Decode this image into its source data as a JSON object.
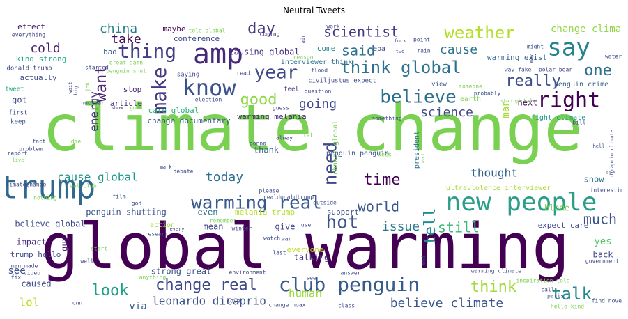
{
  "chart_data": {
    "type": "wordcloud",
    "title": "Neutral Tweets",
    "colormap": "viridis",
    "words": [
      {
        "text": "climate change",
        "weight": 100,
        "color": "#7ad151"
      },
      {
        "text": "global warming",
        "weight": 97,
        "color": "#440154"
      },
      {
        "text": "trump",
        "weight": 52,
        "color": "#31688e"
      },
      {
        "text": "amp",
        "weight": 46,
        "color": "#482878"
      },
      {
        "text": "say",
        "weight": 40,
        "color": "#26828e"
      },
      {
        "text": "new people",
        "weight": 40,
        "color": "#2a9e87"
      },
      {
        "text": "know",
        "weight": 34,
        "color": "#3b528b"
      },
      {
        "text": "thing",
        "weight": 32,
        "color": "#433e85"
      },
      {
        "text": "right",
        "weight": 32,
        "color": "#440154"
      },
      {
        "text": "make",
        "weight": 30,
        "color": "#443a83"
      },
      {
        "text": "warming real",
        "weight": 30,
        "color": "#38598c"
      },
      {
        "text": "club penguin",
        "weight": 30,
        "color": "#365c8d"
      },
      {
        "text": "weather",
        "weight": 30,
        "color": "#b5de2b"
      },
      {
        "text": "year",
        "weight": 28,
        "color": "#3e4a89"
      },
      {
        "text": "believe",
        "weight": 28,
        "color": "#2d708e"
      },
      {
        "text": "need",
        "weight": 28,
        "color": "#3f4788"
      },
      {
        "text": "talk",
        "weight": 28,
        "color": "#23898e"
      },
      {
        "text": "hot",
        "weight": 28,
        "color": "#3b528b"
      },
      {
        "text": "think global",
        "weight": 26,
        "color": "#2c728e"
      },
      {
        "text": "one",
        "weight": 26,
        "color": "#2d708e"
      },
      {
        "text": "really",
        "weight": 26,
        "color": "#3d4e8a"
      },
      {
        "text": "change real",
        "weight": 24,
        "color": "#3e4989"
      },
      {
        "text": "tell",
        "weight": 24,
        "color": "#21908d"
      },
      {
        "text": "time",
        "weight": 24,
        "color": "#440154"
      },
      {
        "text": "good",
        "weight": 24,
        "color": "#8fd744"
      },
      {
        "text": "want",
        "weight": 24,
        "color": "#482475"
      },
      {
        "text": "look",
        "weight": 24,
        "color": "#1f9e89"
      },
      {
        "text": "think",
        "weight": 24,
        "color": "#a0da39"
      },
      {
        "text": "world",
        "weight": 22,
        "color": "#39568c"
      },
      {
        "text": "still",
        "weight": 22,
        "color": "#37b878"
      },
      {
        "text": "much",
        "weight": 22,
        "color": "#3b528b"
      },
      {
        "text": "said",
        "weight": 22,
        "color": "#2d708e"
      },
      {
        "text": "scientist",
        "weight": 22,
        "color": "#443983"
      },
      {
        "text": "day",
        "weight": 22,
        "color": "#453781"
      },
      {
        "text": "china",
        "weight": 20,
        "color": "#277f8e"
      },
      {
        "text": "cause",
        "weight": 20,
        "color": "#2c738e"
      },
      {
        "text": "take",
        "weight": 20,
        "color": "#450a5c"
      },
      {
        "text": "cold",
        "weight": 20,
        "color": "#481c6e"
      },
      {
        "text": "science",
        "weight": 20,
        "color": "#3f4889"
      },
      {
        "text": "cause global",
        "weight": 18,
        "color": "#1f968b"
      },
      {
        "text": "today",
        "weight": 18,
        "color": "#2e6e8e"
      },
      {
        "text": "going",
        "weight": 18,
        "color": "#3e4989"
      },
      {
        "text": "issue",
        "weight": 18,
        "color": "#2a788e"
      },
      {
        "text": "believe climate",
        "weight": 18,
        "color": "#3a548c"
      },
      {
        "text": "human",
        "weight": 18,
        "color": "#9bd93c"
      },
      {
        "text": "energy",
        "weight": 18,
        "color": "#46327e"
      },
      {
        "text": "thought",
        "weight": 16,
        "color": "#32658e"
      },
      {
        "text": "leonardo dicaprio",
        "weight": 16,
        "color": "#3b528b"
      },
      {
        "text": "man",
        "weight": 16,
        "color": "#a2da37"
      },
      {
        "text": "change climate",
        "weight": 14,
        "color": "#8fd744"
      },
      {
        "text": "see",
        "weight": 14,
        "color": "#3b528b"
      },
      {
        "text": "lol",
        "weight": 14,
        "color": "#bddf26"
      },
      {
        "text": "via",
        "weight": 14,
        "color": "#365c8d"
      },
      {
        "text": "yes",
        "weight": 14,
        "color": "#56c667"
      },
      {
        "text": "snow",
        "weight": 13,
        "color": "#2c728e"
      },
      {
        "text": "blame",
        "weight": 13,
        "color": "#7ad151"
      },
      {
        "text": "even",
        "weight": 12,
        "color": "#2c728e"
      },
      {
        "text": "mean",
        "weight": 12,
        "color": "#414487"
      },
      {
        "text": "thank",
        "weight": 12,
        "color": "#355f8d"
      },
      {
        "text": "back",
        "weight": 12,
        "color": "#3e4989"
      },
      {
        "text": "next",
        "weight": 11,
        "color": "#440154"
      },
      {
        "text": "strong great",
        "weight": 11,
        "color": "#3b528b"
      },
      {
        "text": "caused",
        "weight": 11,
        "color": "#3e4989"
      },
      {
        "text": "talking",
        "weight": 11,
        "color": "#443983"
      },
      {
        "text": "impact",
        "weight": 11,
        "color": "#472c7a"
      },
      {
        "text": "guy",
        "weight": 11,
        "color": "#482173"
      },
      {
        "text": "penguin shutting",
        "weight": 11,
        "color": "#3b528b"
      },
      {
        "text": "believe global",
        "weight": 11,
        "color": "#3f4889"
      },
      {
        "text": "give",
        "weight": 11,
        "color": "#414487"
      },
      {
        "text": "causing global",
        "weight": 11,
        "color": "#46307e"
      },
      {
        "text": "care global",
        "weight": 10,
        "color": "#2db27d"
      },
      {
        "text": "warming melania",
        "weight": 10,
        "color": "#482677"
      },
      {
        "text": "change documentary",
        "weight": 10,
        "color": "#3b528b"
      },
      {
        "text": "conference",
        "weight": 10,
        "color": "#3f4889"
      },
      {
        "text": "maybe",
        "weight": 10,
        "color": "#440154"
      },
      {
        "text": "interviewer think",
        "weight": 10,
        "color": "#2d708e"
      },
      {
        "text": "warming exist",
        "weight": 10,
        "color": "#355f8d"
      },
      {
        "text": "effect",
        "weight": 10,
        "color": "#481b6d"
      },
      {
        "text": "kind strong",
        "weight": 10,
        "color": "#20a486"
      },
      {
        "text": "got",
        "weight": 10,
        "color": "#3e4a89"
      },
      {
        "text": "actually",
        "weight": 10,
        "color": "#3d4d8a"
      },
      {
        "text": "stop",
        "weight": 10,
        "color": "#482475"
      },
      {
        "text": "bad",
        "weight": 10,
        "color": "#38598c"
      },
      {
        "text": "come",
        "weight": 10,
        "color": "#26828e"
      },
      {
        "text": "article",
        "weight": 9,
        "color": "#472d7b"
      },
      {
        "text": "trump hello",
        "weight": 9,
        "color": "#3e4a89"
      },
      {
        "text": "expect care",
        "weight": 9,
        "color": "#3e4989"
      },
      {
        "text": "melania trump",
        "weight": 9,
        "color": "#b5de2b"
      },
      {
        "text": "action",
        "weight": 9,
        "color": "#9fda3a"
      },
      {
        "text": "everyone",
        "weight": 9,
        "color": "#bddf26"
      },
      {
        "text": "support",
        "weight": 9,
        "color": "#3b528b"
      },
      {
        "text": "penguin crime",
        "weight": 9,
        "color": "#355f8d"
      },
      {
        "text": "fight climate",
        "weight": 9,
        "color": "#1f998a"
      },
      {
        "text": "ultravlolence interviewer",
        "weight": 9,
        "color": "#a8db34"
      },
      {
        "text": "change global",
        "weight": 8,
        "color": "#75d054"
      },
      {
        "text": "penguin penguin",
        "weight": 8,
        "color": "#39568c"
      },
      {
        "text": "president",
        "weight": 8,
        "color": "#2c728e"
      },
      {
        "text": "civiljustus expect",
        "weight": 8,
        "color": "#3e4989"
      },
      {
        "text": "view",
        "weight": 8,
        "color": "#3b528b"
      },
      {
        "text": "earth",
        "weight": 8,
        "color": "#7ad151"
      },
      {
        "text": "saying",
        "weight": 8,
        "color": "#414487"
      },
      {
        "text": "epa",
        "weight": 8,
        "color": "#3e4989"
      },
      {
        "text": "feel",
        "weight": 8,
        "color": "#472c7a"
      },
      {
        "text": "donald trump",
        "weight": 8,
        "color": "#3e4989"
      },
      {
        "text": "tweet",
        "weight": 8,
        "color": "#22a884"
      },
      {
        "text": "first",
        "weight": 8,
        "color": "#3e4989"
      },
      {
        "text": "keep",
        "weight": 8,
        "color": "#3b528b"
      },
      {
        "text": "everything",
        "weight": 7,
        "color": "#414487"
      },
      {
        "text": "work",
        "weight": 7,
        "color": "#3e4989"
      },
      {
        "text": "told global",
        "weight": 7,
        "color": "#7ad151"
      },
      {
        "text": "coming",
        "weight": 7,
        "color": "#472d7b"
      },
      {
        "text": "point",
        "weight": 7,
        "color": "#3e4989"
      },
      {
        "text": "might",
        "weight": 7,
        "color": "#3b528b"
      },
      {
        "text": "rain",
        "weight": 7,
        "color": "#3e4989"
      },
      {
        "text": "water",
        "weight": 7,
        "color": "#3b528b"
      },
      {
        "text": "polar bear",
        "weight": 7,
        "color": "#3e4989"
      },
      {
        "text": "way fake",
        "weight": 7,
        "color": "#3b528b"
      },
      {
        "text": "flood",
        "weight": 7,
        "color": "#3b528b"
      },
      {
        "text": "reason",
        "weight": 7,
        "color": "#7ad151"
      },
      {
        "text": "great damn",
        "weight": 7,
        "color": "#7ad151"
      },
      {
        "text": "started",
        "weight": 7,
        "color": "#3e4989"
      },
      {
        "text": "penguin shut",
        "weight": 7,
        "color": "#7ad151"
      },
      {
        "text": "read",
        "weight": 7,
        "color": "#3e4989"
      },
      {
        "text": "question",
        "weight": 7,
        "color": "#3e4989"
      },
      {
        "text": "someone",
        "weight": 6,
        "color": "#7ad151"
      },
      {
        "text": "probably",
        "weight": 6,
        "color": "#3b528b"
      },
      {
        "text": "election",
        "weight": 6,
        "color": "#3e4989"
      },
      {
        "text": "nuclear",
        "weight": 6,
        "color": "#3b528b"
      },
      {
        "text": "guess",
        "weight": 6,
        "color": "#3e4989"
      },
      {
        "text": "something",
        "weight": 6,
        "color": "#3e4989"
      },
      {
        "text": "bill",
        "weight": 6,
        "color": "#3e4989"
      },
      {
        "text": "let",
        "weight": 6,
        "color": "#7ad151"
      },
      {
        "text": "alway",
        "weight": 6,
        "color": "#3e4989"
      },
      {
        "text": "gonna",
        "weight": 6,
        "color": "#3b528b"
      },
      {
        "text": "fact",
        "weight": 6,
        "color": "#3e4989"
      },
      {
        "text": "problem",
        "weight": 6,
        "color": "#3e4989"
      },
      {
        "text": "die",
        "weight": 6,
        "color": "#7ad151"
      },
      {
        "text": "report",
        "weight": 6,
        "color": "#3e4989"
      },
      {
        "text": "week",
        "weight": 6,
        "color": "#7ad151"
      },
      {
        "text": "dicaprio climate",
        "weight": 6,
        "color": "#3e4989"
      },
      {
        "text": "debate",
        "weight": 6,
        "color": "#3e4989"
      },
      {
        "text": "ask",
        "weight": 6,
        "color": "#3b528b"
      },
      {
        "text": "real club",
        "weight": 6,
        "color": "#7ad151"
      },
      {
        "text": "climatechange",
        "weight": 6,
        "color": "#3e4989"
      },
      {
        "text": "film",
        "weight": 6,
        "color": "#3b528b"
      },
      {
        "text": "god",
        "weight": 6,
        "color": "#3e4989"
      },
      {
        "text": "please",
        "weight": 6,
        "color": "#3e4989"
      },
      {
        "text": "interesting",
        "weight": 6,
        "color": "#3e4989"
      },
      {
        "text": "nothing",
        "weight": 6,
        "color": "#7ad151"
      },
      {
        "text": "realdonaldtrump",
        "weight": 6,
        "color": "#3e4989"
      },
      {
        "text": "outside",
        "weight": 6,
        "color": "#3e4989"
      },
      {
        "text": "remember",
        "weight": 6,
        "color": "#7ad151"
      },
      {
        "text": "research",
        "weight": 6,
        "color": "#3e4989"
      },
      {
        "text": "winter",
        "weight": 6,
        "color": "#3e4989"
      },
      {
        "text": "use",
        "weight": 6,
        "color": "#3e4989"
      },
      {
        "text": "watch",
        "weight": 6,
        "color": "#3e4989"
      },
      {
        "text": "war",
        "weight": 6,
        "color": "#3e4989"
      },
      {
        "text": "start",
        "weight": 6,
        "color": "#7ad151"
      },
      {
        "text": "last",
        "weight": 6,
        "color": "#3e4989"
      },
      {
        "text": "man made",
        "weight": 6,
        "color": "#3e4989"
      },
      {
        "text": "video",
        "weight": 6,
        "color": "#3e4989"
      },
      {
        "text": "well",
        "weight": 6,
        "color": "#3e4989"
      },
      {
        "text": "fix",
        "weight": 6,
        "color": "#3e4989"
      },
      {
        "text": "anything",
        "weight": 6,
        "color": "#7ad151"
      },
      {
        "text": "environment",
        "weight": 6,
        "color": "#3e4989"
      },
      {
        "text": "answer",
        "weight": 6,
        "color": "#3e4989"
      },
      {
        "text": "warming climate",
        "weight": 6,
        "color": "#3e4989"
      },
      {
        "text": "inspiration told",
        "weight": 6,
        "color": "#7ad151"
      },
      {
        "text": "call",
        "weight": 6,
        "color": "#3e4989"
      },
      {
        "text": "paris",
        "weight": 6,
        "color": "#3e4989"
      },
      {
        "text": "government",
        "weight": 6,
        "color": "#3e4989"
      },
      {
        "text": "cnn",
        "weight": 6,
        "color": "#3e4989"
      },
      {
        "text": "love",
        "weight": 6,
        "color": "#3e4989"
      },
      {
        "text": "change hoax",
        "weight": 6,
        "color": "#3e4989"
      },
      {
        "text": "class",
        "weight": 6,
        "color": "#3e4989"
      },
      {
        "text": "hello kind",
        "weight": 6,
        "color": "#7ad151"
      },
      {
        "text": "find november",
        "weight": 6,
        "color": "#3e4989"
      },
      {
        "text": "fuck",
        "weight": 6,
        "color": "#3e4989"
      },
      {
        "text": "two",
        "weight": 6,
        "color": "#3e4989"
      },
      {
        "text": "wait",
        "weight": 6,
        "color": "#3e4989"
      },
      {
        "text": "big",
        "weight": 6,
        "color": "#3e4989"
      },
      {
        "text": "job",
        "weight": 6,
        "color": "#7ad151"
      },
      {
        "text": "show",
        "weight": 6,
        "color": "#3e4989"
      },
      {
        "text": "gore",
        "weight": 6,
        "color": "#7ad151"
      },
      {
        "text": "may",
        "weight": 6,
        "color": "#3e4989"
      },
      {
        "text": "air",
        "weight": 6,
        "color": "#3e4989"
      },
      {
        "text": "live",
        "weight": 6,
        "color": "#7ad151"
      },
      {
        "text": "hell",
        "weight": 6,
        "color": "#3e4989"
      },
      {
        "text": "mark",
        "weight": 6,
        "color": "#3e4989"
      },
      {
        "text": "every",
        "weight": 6,
        "color": "#3e4989"
      },
      {
        "text": "end",
        "weight": 6,
        "color": "#3e4989"
      },
      {
        "text": "part",
        "weight": 6,
        "color": "#7ad151"
      },
      {
        "text": "stop global",
        "weight": 6,
        "color": "#7ad151"
      },
      {
        "text": "seen",
        "weight": 6,
        "color": "#3e4989"
      }
    ]
  }
}
